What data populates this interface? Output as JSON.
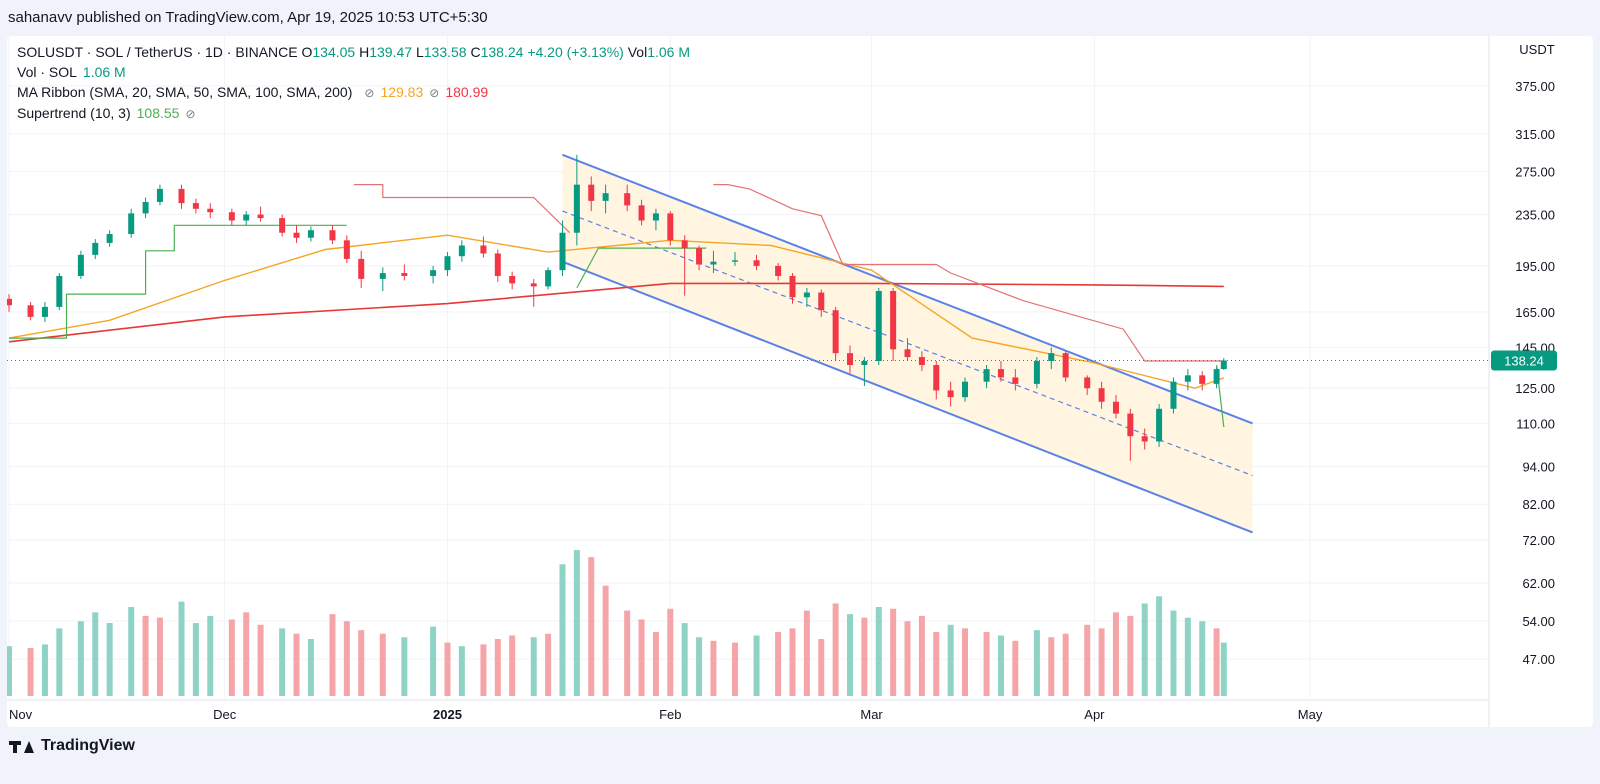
{
  "header": {
    "published": "sahanavv published on TradingView.com, Apr 19, 2025 10:53 UTC+5:30"
  },
  "legend": {
    "symbol": "SOLUSDT · SOL / TetherUS · 1D · BINANCE",
    "o_label": "O",
    "o_value": "134.05",
    "h_label": "H",
    "h_value": "139.47",
    "l_label": "L",
    "l_value": "133.58",
    "c_label": "C",
    "c_value": "138.24",
    "change": "+4.20 (+3.13%)",
    "vol_label": "Vol",
    "vol_value": "1.06 M",
    "vol_study": "Vol · SOL",
    "vol_study_value": "1.06 M",
    "ma_study": "MA Ribbon (SMA, 20, SMA, 50, SMA, 100, SMA, 200)",
    "ma_value1": "129.83",
    "ma_value2": "180.99",
    "st_study": "Supertrend (10, 3)",
    "st_value": "108.55"
  },
  "footer": {
    "brand": "TradingView"
  },
  "colors": {
    "up": "#089981",
    "down": "#f23645",
    "channel": "#5b82e8",
    "ma_fast": "#f5a623",
    "ma_slow": "#e53935",
    "st_up": "#4caf50",
    "st_down": "#e57373"
  },
  "chart_data": {
    "type": "candlestick",
    "currency": "USDT",
    "last_price": "138.24",
    "y_scale": "log",
    "ylim": [
      72,
      375
    ],
    "y_ticks": [
      375,
      315,
      275,
      235,
      195,
      165,
      145,
      125,
      110,
      94,
      82,
      72
    ],
    "volume_ticks": [
      "62.00",
      "54.00",
      "47.00"
    ],
    "x_range": [
      "2024-11-01",
      "2025-05-22"
    ],
    "x_ticks": [
      {
        "date": "2024-11-01",
        "label": "Nov",
        "bold": false
      },
      {
        "date": "2024-12-01",
        "label": "Dec",
        "bold": false
      },
      {
        "date": "2025-01-01",
        "label": "2025",
        "bold": true
      },
      {
        "date": "2025-02-01",
        "label": "Feb",
        "bold": false
      },
      {
        "date": "2025-03-01",
        "label": "Mar",
        "bold": false
      },
      {
        "date": "2025-04-01",
        "label": "Apr",
        "bold": false
      },
      {
        "date": "2025-05-01",
        "label": "May",
        "bold": false
      }
    ],
    "candles": [
      [
        "2024-11-01",
        173,
        176,
        165,
        169
      ],
      [
        "2024-11-04",
        169,
        171,
        160,
        162
      ],
      [
        "2024-11-06",
        162,
        171,
        159,
        168
      ],
      [
        "2024-11-08",
        168,
        190,
        166,
        188
      ],
      [
        "2024-11-11",
        188,
        206,
        186,
        203
      ],
      [
        "2024-11-13",
        203,
        215,
        200,
        212
      ],
      [
        "2024-11-15",
        212,
        222,
        209,
        219
      ],
      [
        "2024-11-18",
        219,
        240,
        216,
        236
      ],
      [
        "2024-11-20",
        236,
        250,
        232,
        246
      ],
      [
        "2024-11-22",
        246,
        262,
        243,
        258
      ],
      [
        "2024-11-25",
        258,
        262,
        240,
        245
      ],
      [
        "2024-11-27",
        245,
        249,
        236,
        240
      ],
      [
        "2024-11-29",
        240,
        245,
        232,
        237
      ],
      [
        "2024-12-02",
        237,
        240,
        226,
        230
      ],
      [
        "2024-12-04",
        230,
        238,
        226,
        235
      ],
      [
        "2024-12-06",
        235,
        242,
        229,
        232
      ],
      [
        "2024-12-09",
        232,
        235,
        217,
        220
      ],
      [
        "2024-12-11",
        220,
        226,
        212,
        216
      ],
      [
        "2024-12-13",
        216,
        225,
        213,
        222
      ],
      [
        "2024-12-16",
        222,
        226,
        211,
        214
      ],
      [
        "2024-12-18",
        214,
        218,
        197,
        200
      ],
      [
        "2024-12-20",
        200,
        206,
        180,
        186
      ],
      [
        "2024-12-23",
        186,
        194,
        178,
        190
      ],
      [
        "2024-12-26",
        190,
        196,
        185,
        188
      ],
      [
        "2024-12-30",
        188,
        195,
        183,
        192
      ],
      [
        "2025-01-01",
        192,
        205,
        188,
        202
      ],
      [
        "2025-01-03",
        202,
        214,
        198,
        210
      ],
      [
        "2025-01-06",
        210,
        217,
        201,
        204
      ],
      [
        "2025-01-08",
        204,
        207,
        184,
        188
      ],
      [
        "2025-01-10",
        188,
        191,
        179,
        183
      ],
      [
        "2025-01-13",
        183,
        186,
        168,
        181
      ],
      [
        "2025-01-15",
        181,
        194,
        179,
        192
      ],
      [
        "2025-01-17",
        192,
        230,
        188,
        220
      ],
      [
        "2025-01-19",
        220,
        292,
        210,
        262
      ],
      [
        "2025-01-21",
        262,
        270,
        238,
        247
      ],
      [
        "2025-01-23",
        247,
        262,
        236,
        254
      ],
      [
        "2025-01-26",
        254,
        262,
        238,
        243
      ],
      [
        "2025-01-28",
        243,
        248,
        226,
        230
      ],
      [
        "2025-01-30",
        230,
        240,
        222,
        236
      ],
      [
        "2025-02-01",
        236,
        238,
        210,
        214
      ],
      [
        "2025-02-03",
        214,
        218,
        175,
        208
      ],
      [
        "2025-02-05",
        208,
        210,
        192,
        196
      ],
      [
        "2025-02-07",
        196,
        206,
        190,
        198
      ],
      [
        "2025-02-10",
        198,
        205,
        195,
        199
      ],
      [
        "2025-02-13",
        199,
        203,
        192,
        195
      ],
      [
        "2025-02-16",
        195,
        197,
        185,
        188
      ],
      [
        "2025-02-18",
        188,
        190,
        170,
        174
      ],
      [
        "2025-02-20",
        174,
        180,
        168,
        177
      ],
      [
        "2025-02-22",
        177,
        179,
        162,
        166
      ],
      [
        "2025-02-24",
        166,
        168,
        138,
        142
      ],
      [
        "2025-02-26",
        142,
        146,
        132,
        136
      ],
      [
        "2025-02-28",
        136,
        140,
        126,
        138
      ],
      [
        "2025-03-02",
        138,
        180,
        136,
        178
      ],
      [
        "2025-03-04",
        178,
        180,
        138,
        144
      ],
      [
        "2025-03-06",
        144,
        150,
        138,
        140
      ],
      [
        "2025-03-08",
        140,
        143,
        133,
        136
      ],
      [
        "2025-03-10",
        136,
        138,
        120,
        124
      ],
      [
        "2025-03-12",
        124,
        128,
        117,
        121
      ],
      [
        "2025-03-14",
        121,
        130,
        119,
        128
      ],
      [
        "2025-03-17",
        128,
        136,
        125,
        134
      ],
      [
        "2025-03-19",
        134,
        138,
        128,
        130
      ],
      [
        "2025-03-21",
        130,
        134,
        124,
        127
      ],
      [
        "2025-03-24",
        127,
        140,
        125,
        138
      ],
      [
        "2025-03-26",
        138,
        145,
        134,
        142
      ],
      [
        "2025-03-28",
        142,
        143,
        128,
        130
      ],
      [
        "2025-03-31",
        130,
        131,
        122,
        125
      ],
      [
        "2025-04-02",
        125,
        128,
        116,
        119
      ],
      [
        "2025-04-04",
        119,
        122,
        112,
        114
      ],
      [
        "2025-04-06",
        114,
        116,
        96,
        105
      ],
      [
        "2025-04-08",
        105,
        108,
        100,
        103
      ],
      [
        "2025-04-10",
        103,
        118,
        101,
        116
      ],
      [
        "2025-04-12",
        116,
        130,
        114,
        128
      ],
      [
        "2025-04-14",
        128,
        134,
        124,
        131
      ],
      [
        "2025-04-16",
        131,
        133,
        124,
        127
      ],
      [
        "2025-04-18",
        127,
        135,
        125,
        134
      ],
      [
        "2025-04-19",
        134.05,
        139.47,
        133.58,
        138.24
      ]
    ],
    "sma_fast": [
      [
        "2024-11-01",
        150
      ],
      [
        "2024-11-15",
        160
      ],
      [
        "2024-12-01",
        185
      ],
      [
        "2024-12-15",
        207
      ],
      [
        "2025-01-01",
        218
      ],
      [
        "2025-01-15",
        205
      ],
      [
        "2025-02-01",
        214
      ],
      [
        "2025-02-15",
        210
      ],
      [
        "2025-03-01",
        192
      ],
      [
        "2025-03-15",
        150
      ],
      [
        "2025-04-01",
        137
      ],
      [
        "2025-04-15",
        125
      ],
      [
        "2025-04-19",
        129.83
      ]
    ],
    "sma_slow": [
      [
        "2024-11-01",
        148
      ],
      [
        "2024-12-01",
        162
      ],
      [
        "2025-01-01",
        170
      ],
      [
        "2025-02-01",
        183
      ],
      [
        "2025-03-01",
        183
      ],
      [
        "2025-04-01",
        182
      ],
      [
        "2025-04-19",
        180.99
      ]
    ],
    "supertrend": [
      {
        "trend": "up",
        "points": [
          [
            "2024-11-01",
            150
          ],
          [
            "2024-11-09",
            150
          ],
          [
            "2024-11-09",
            176
          ],
          [
            "2024-11-20",
            176
          ],
          [
            "2024-11-20",
            206
          ],
          [
            "2024-11-24",
            206
          ],
          [
            "2024-11-24",
            226
          ],
          [
            "2024-12-18",
            226
          ]
        ]
      },
      {
        "trend": "down",
        "points": [
          [
            "2024-12-19",
            262
          ],
          [
            "2024-12-23",
            262
          ],
          [
            "2024-12-23",
            250
          ],
          [
            "2025-01-13",
            250
          ],
          [
            "2025-01-18",
            220
          ]
        ]
      },
      {
        "trend": "up",
        "points": [
          [
            "2025-01-19",
            180
          ],
          [
            "2025-01-22",
            208
          ],
          [
            "2025-02-06",
            208
          ]
        ]
      },
      {
        "trend": "down",
        "points": [
          [
            "2025-02-07",
            262
          ],
          [
            "2025-02-09",
            262
          ],
          [
            "2025-02-12",
            258
          ],
          [
            "2025-02-18",
            240
          ],
          [
            "2025-02-22",
            234
          ],
          [
            "2025-02-25",
            196
          ],
          [
            "2025-03-10",
            196
          ],
          [
            "2025-03-12",
            190
          ],
          [
            "2025-03-22",
            172
          ],
          [
            "2025-04-05",
            155
          ],
          [
            "2025-04-08",
            138
          ],
          [
            "2025-04-19",
            138
          ]
        ]
      },
      {
        "trend": "up",
        "points": [
          [
            "2025-04-18",
            136
          ],
          [
            "2025-04-19",
            108.55
          ]
        ]
      }
    ],
    "channel": {
      "start": "2025-01-17",
      "end": "2025-04-23",
      "upper": [
        292,
        110
      ],
      "middle": [
        238,
        91
      ],
      "lower": [
        198,
        74
      ],
      "shaded_range": [
        "2025-01-17",
        "2025-04-23"
      ]
    },
    "volume": [
      [
        28,
        0
      ],
      [
        27,
        1
      ],
      [
        29,
        0
      ],
      [
        38,
        0
      ],
      [
        42,
        0
      ],
      [
        47,
        0
      ],
      [
        41,
        0
      ],
      [
        50,
        0
      ],
      [
        45,
        1
      ],
      [
        44,
        1
      ],
      [
        53,
        0
      ],
      [
        41,
        0
      ],
      [
        45,
        0
      ],
      [
        43,
        1
      ],
      [
        47,
        1
      ],
      [
        40,
        1
      ],
      [
        38,
        0
      ],
      [
        35,
        1
      ],
      [
        32,
        0
      ],
      [
        46,
        1
      ],
      [
        42,
        1
      ],
      [
        37,
        1
      ],
      [
        35,
        1
      ],
      [
        33,
        0
      ],
      [
        39,
        0
      ],
      [
        30,
        1
      ],
      [
        28,
        0
      ],
      [
        29,
        1
      ],
      [
        32,
        1
      ],
      [
        34,
        1
      ],
      [
        33,
        0
      ],
      [
        35,
        1
      ],
      [
        74,
        0
      ],
      [
        82,
        0
      ],
      [
        78,
        1
      ],
      [
        62,
        1
      ],
      [
        48,
        1
      ],
      [
        43,
        1
      ],
      [
        36,
        1
      ],
      [
        49,
        1
      ],
      [
        41,
        0
      ],
      [
        33,
        0
      ],
      [
        31,
        1
      ],
      [
        30,
        1
      ],
      [
        34,
        0
      ],
      [
        36,
        1
      ],
      [
        38,
        1
      ],
      [
        48,
        1
      ],
      [
        32,
        1
      ],
      [
        52,
        1
      ],
      [
        46,
        0
      ],
      [
        44,
        1
      ],
      [
        50,
        0
      ],
      [
        49,
        1
      ],
      [
        42,
        1
      ],
      [
        45,
        1
      ],
      [
        36,
        1
      ],
      [
        40,
        0
      ],
      [
        38,
        1
      ],
      [
        36,
        1
      ],
      [
        34,
        0
      ],
      [
        31,
        1
      ],
      [
        37,
        0
      ],
      [
        33,
        1
      ],
      [
        35,
        1
      ],
      [
        40,
        1
      ],
      [
        38,
        1
      ],
      [
        47,
        1
      ],
      [
        45,
        1
      ],
      [
        52,
        0
      ],
      [
        56,
        0
      ],
      [
        48,
        0
      ],
      [
        44,
        0
      ],
      [
        42,
        0
      ],
      [
        38,
        1
      ],
      [
        30,
        0
      ]
    ]
  }
}
